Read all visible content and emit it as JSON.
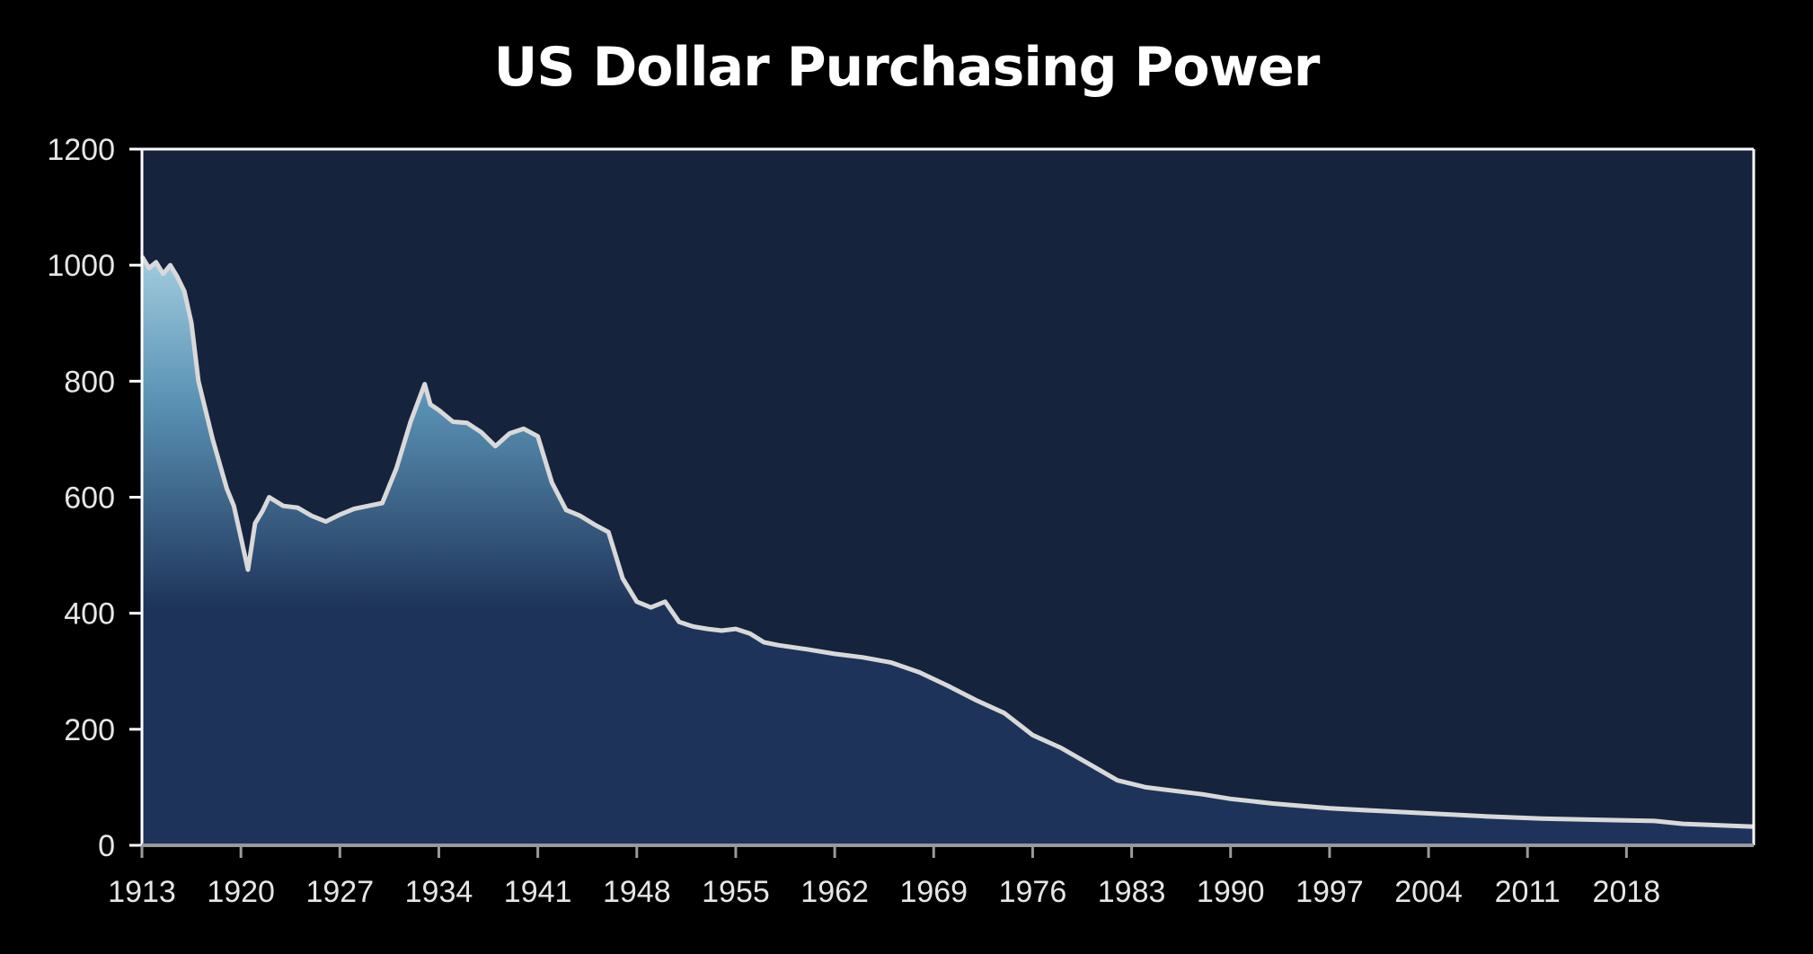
{
  "chart_data": {
    "type": "area",
    "title": "US Dollar Purchasing Power",
    "xlabel": "",
    "ylabel": "",
    "xlim": [
      1913,
      2027
    ],
    "ylim": [
      0,
      1200
    ],
    "grid": false,
    "legend": "none",
    "y_ticks": [
      "0",
      "200",
      "400",
      "600",
      "800",
      "1000",
      "1200"
    ],
    "x_ticks": [
      "1913",
      "1920",
      "1927",
      "1934",
      "1941",
      "1948",
      "1955",
      "1962",
      "1969",
      "1976",
      "1983",
      "1990",
      "1997",
      "2004",
      "2011",
      "2018"
    ],
    "x": [
      1913,
      1913.5,
      1914,
      1914.5,
      1915,
      1915.5,
      1916,
      1916.5,
      1917,
      1918,
      1919,
      1919.5,
      1920,
      1920.5,
      1921,
      1921.5,
      1922,
      1923,
      1924,
      1925,
      1926,
      1927,
      1928,
      1929,
      1930,
      1931,
      1932,
      1933,
      1933.4,
      1934,
      1935,
      1936,
      1937,
      1938,
      1939,
      1940,
      1941,
      1942,
      1943,
      1944,
      1945,
      1946,
      1947,
      1948,
      1949,
      1950,
      1951,
      1952,
      1953,
      1954,
      1955,
      1956,
      1957,
      1958,
      1960,
      1962,
      1964,
      1966,
      1968,
      1970,
      1972,
      1974,
      1976,
      1978,
      1980,
      1982,
      1984,
      1986,
      1988,
      1990,
      1993,
      1997,
      2000,
      2004,
      2008,
      2012,
      2016,
      2020,
      2022,
      2027
    ],
    "values": [
      1015,
      995,
      1005,
      985,
      1000,
      980,
      955,
      900,
      800,
      700,
      615,
      585,
      530,
      475,
      555,
      575,
      600,
      585,
      582,
      568,
      558,
      570,
      580,
      585,
      590,
      650,
      730,
      795,
      760,
      750,
      730,
      728,
      712,
      688,
      710,
      718,
      705,
      625,
      578,
      568,
      553,
      540,
      460,
      420,
      410,
      420,
      385,
      377,
      373,
      370,
      373,
      365,
      350,
      345,
      338,
      330,
      324,
      315,
      298,
      275,
      250,
      228,
      190,
      168,
      140,
      112,
      100,
      94,
      88,
      80,
      72,
      64,
      60,
      55,
      50,
      46,
      44,
      42,
      37,
      32
    ]
  },
  "colors": {
    "plot_bg": "#16233d",
    "fill_top": "#a3cde0",
    "fill_mid": "#5a92b4",
    "fill_base": "#1e335a",
    "line": "#d9d9d9",
    "axis": "#ffffff"
  }
}
